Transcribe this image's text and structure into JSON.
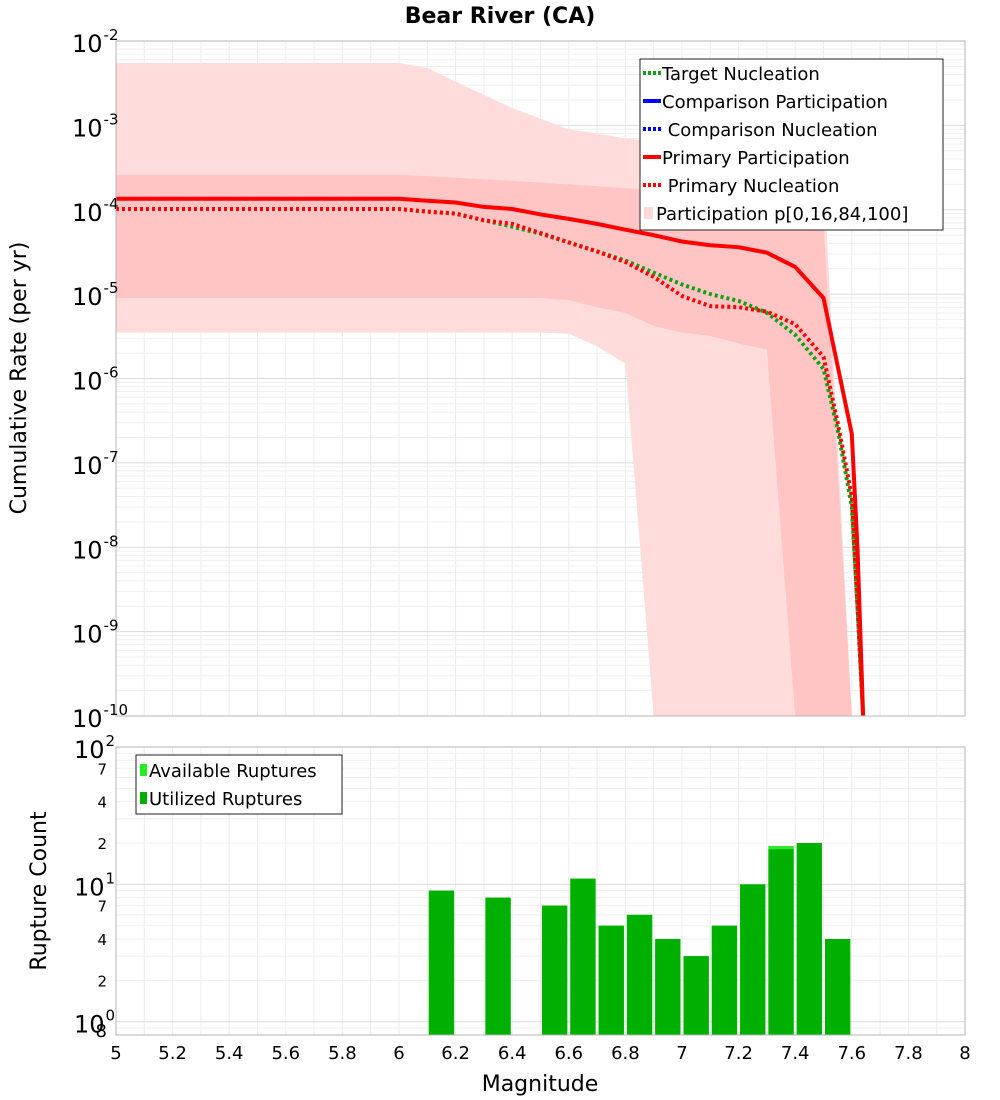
{
  "chart_data": [
    {
      "type": "line",
      "title": "Bear River (CA)",
      "xlabel": "",
      "ylabel": "Cumulative Rate (per yr)",
      "xlim": [
        5,
        8
      ],
      "ylim": [
        1e-10,
        0.01
      ],
      "yscale": "log",
      "y_tick_exponents": [
        "-2",
        "-3",
        "-4",
        "-5",
        "-6",
        "-7",
        "-8",
        "-9",
        "-10"
      ],
      "grid": true,
      "legend_position": "top-right",
      "legend": [
        {
          "label": "Target Nucleation",
          "color": "#11a011",
          "style": "dotted"
        },
        {
          "label": "Comparison Participation",
          "color": "#0000ff",
          "style": "solid"
        },
        {
          "label": " Comparison Nucleation",
          "color": "#0000ff",
          "style": "dotted"
        },
        {
          "label": "Primary Participation",
          "color": "#ff0000",
          "style": "solid"
        },
        {
          "label": " Primary Nucleation",
          "color": "#ff0000",
          "style": "dotted"
        },
        {
          "label": "Participation p[0,16,84,100]",
          "color": "#ffd8d8",
          "style": "fill"
        }
      ],
      "bands": [
        {
          "name": "p0-p100",
          "color": "#ffdcdc",
          "x": [
            5.0,
            5.1,
            5.2,
            5.3,
            5.4,
            5.5,
            5.6,
            5.7,
            5.8,
            5.9,
            6.0,
            6.1,
            6.2,
            6.3,
            6.4,
            6.5,
            6.6,
            6.7,
            6.8,
            6.9,
            7.0,
            7.1,
            7.2,
            7.3,
            7.4,
            7.5,
            7.6,
            7.7
          ],
          "upper": [
            0.0055,
            0.0055,
            0.0055,
            0.0055,
            0.0055,
            0.0055,
            0.0055,
            0.0055,
            0.0055,
            0.0055,
            0.0055,
            0.0048,
            0.0033,
            0.0023,
            0.0016,
            0.0012,
            0.0009,
            0.0008,
            0.0007,
            0.00065,
            0.0006,
            0.00055,
            0.0005,
            0.0004,
            0.00035,
            0.0003,
            1e-10,
            1e-10
          ],
          "lower": [
            3.5e-06,
            3.5e-06,
            3.5e-06,
            3.5e-06,
            3.5e-06,
            3.5e-06,
            3.5e-06,
            3.5e-06,
            3.5e-06,
            3.5e-06,
            3.5e-06,
            3.5e-06,
            3.5e-06,
            3.5e-06,
            3.5e-06,
            3.5e-06,
            3.4e-06,
            2.4e-06,
            1.5e-06,
            1e-10,
            1e-10,
            1e-10,
            1e-10,
            1e-10,
            1e-10,
            1e-10,
            1e-10,
            1e-10
          ]
        },
        {
          "name": "p16-p84",
          "color": "#ffc4c4",
          "x": [
            5.0,
            5.1,
            5.2,
            5.3,
            5.4,
            5.5,
            5.6,
            5.7,
            5.8,
            5.9,
            6.0,
            6.1,
            6.2,
            6.3,
            6.4,
            6.5,
            6.6,
            6.7,
            6.8,
            6.9,
            7.0,
            7.1,
            7.2,
            7.3,
            7.4,
            7.5,
            7.6,
            7.7
          ],
          "upper": [
            0.00026,
            0.00026,
            0.00026,
            0.00026,
            0.00026,
            0.00026,
            0.00026,
            0.00026,
            0.00026,
            0.00026,
            0.00026,
            0.00025,
            0.00024,
            0.00023,
            0.00022,
            0.00021,
            0.0002,
            0.00019,
            0.00018,
            0.00017,
            0.00016,
            0.00015,
            0.00014,
            0.00012,
            0.0001,
            7e-05,
            1e-10,
            1e-10
          ],
          "lower": [
            9e-06,
            9e-06,
            9e-06,
            9e-06,
            9e-06,
            9e-06,
            9e-06,
            9e-06,
            9e-06,
            9e-06,
            9e-06,
            9e-06,
            9e-06,
            9e-06,
            9e-06,
            9e-06,
            8.5e-06,
            7e-06,
            6e-06,
            4.2e-06,
            3.5e-06,
            3.2e-06,
            2.6e-06,
            2.2e-06,
            1e-10,
            1e-10,
            1e-10,
            1e-10
          ]
        }
      ],
      "series": [
        {
          "name": "Primary Participation",
          "color": "#ff0000",
          "style": "solid",
          "x": [
            5.0,
            6.0,
            6.1,
            6.2,
            6.3,
            6.4,
            6.5,
            6.6,
            6.7,
            6.8,
            6.9,
            7.0,
            7.1,
            7.2,
            7.3,
            7.4,
            7.5,
            7.6,
            7.62,
            7.64
          ],
          "y": [
            0.000135,
            0.000135,
            0.000128,
            0.000122,
            0.000108,
            0.000102,
            8.8e-05,
            7.8e-05,
            6.8e-05,
            5.8e-05,
            5e-05,
            4.2e-05,
            3.8e-05,
            3.6e-05,
            3.1e-05,
            2.1e-05,
            9e-06,
            2.2e-07,
            1e-08,
            1e-10
          ]
        },
        {
          "name": "Target Nucleation",
          "color": "#11a011",
          "style": "dotted",
          "x": [
            5.0,
            6.0,
            6.1,
            6.2,
            6.3,
            6.4,
            6.5,
            6.6,
            6.7,
            6.8,
            6.9,
            7.0,
            7.1,
            7.2,
            7.3,
            7.4,
            7.5,
            7.55,
            7.6,
            7.62,
            7.64
          ],
          "y": [
            0.000102,
            0.000102,
            9.5e-05,
            9e-05,
            7.5e-05,
            6.3e-05,
            5.2e-05,
            4.1e-05,
            3.2e-05,
            2.5e-05,
            1.8e-05,
            1.3e-05,
            1e-05,
            8.3e-06,
            6e-06,
            3.3e-06,
            1.3e-06,
            2.5e-07,
            3e-08,
            2e-09,
            1e-10
          ]
        },
        {
          "name": "Primary Nucleation",
          "color": "#ff0000",
          "style": "dotted",
          "x": [
            5.0,
            6.0,
            6.1,
            6.2,
            6.3,
            6.4,
            6.5,
            6.6,
            6.7,
            6.8,
            6.9,
            7.0,
            7.1,
            7.2,
            7.3,
            7.4,
            7.5,
            7.55,
            7.6,
            7.62,
            7.64
          ],
          "y": [
            0.000102,
            0.000102,
            9.5e-05,
            9e-05,
            7.5e-05,
            6.8e-05,
            5.3e-05,
            4.1e-05,
            3.2e-05,
            2.4e-05,
            1.6e-05,
            9.5e-06,
            7.2e-06,
            7e-06,
            6.2e-06,
            4.4e-06,
            1.8e-06,
            3e-07,
            4e-08,
            2e-09,
            1e-10
          ]
        }
      ]
    },
    {
      "type": "bar",
      "title": "",
      "xlabel": "Magnitude",
      "ylabel": "Rupture Count",
      "xlim": [
        5,
        8
      ],
      "ylim": [
        0.8,
        100
      ],
      "yscale": "log",
      "x_ticks": [
        "5",
        "5.2",
        "5.4",
        "5.6",
        "5.8",
        "6",
        "6.2",
        "6.4",
        "6.6",
        "6.8",
        "7",
        "7.2",
        "7.4",
        "7.6",
        "7.8",
        "8"
      ],
      "grid": true,
      "legend_position": "top-left",
      "legend": [
        {
          "label": "Available Ruptures",
          "color": "#22ee22"
        },
        {
          "label": "Utilized Ruptures",
          "color": "#00b000"
        }
      ],
      "bin_width": 0.1,
      "series": [
        {
          "name": "Available Ruptures",
          "color": "#22ee22",
          "x": [
            6.15,
            6.35,
            6.55,
            6.65,
            6.75,
            6.85,
            6.95,
            7.05,
            7.15,
            7.25,
            7.35,
            7.45,
            7.55
          ],
          "values": [
            9,
            8,
            7,
            11,
            5,
            6,
            4,
            3,
            5,
            10,
            19,
            20,
            4
          ]
        },
        {
          "name": "Utilized Ruptures",
          "color": "#00b000",
          "x": [
            6.15,
            6.35,
            6.55,
            6.65,
            6.75,
            6.85,
            6.95,
            7.05,
            7.15,
            7.25,
            7.35,
            7.45,
            7.55
          ],
          "values": [
            9,
            8,
            7,
            11,
            5,
            6,
            4,
            3,
            5,
            10,
            18,
            20,
            4
          ]
        }
      ]
    }
  ],
  "bottom_y_tick_labels": {
    "major": [
      {
        "base": "10",
        "exp": "2",
        "value": 100
      },
      {
        "base": "10",
        "exp": "1",
        "value": 10
      },
      {
        "base": "10",
        "exp": "0",
        "value": 1
      }
    ],
    "minor": [
      {
        "label": "7",
        "value": 70
      },
      {
        "label": "4",
        "value": 40
      },
      {
        "label": "2",
        "value": 20
      },
      {
        "label": "7",
        "value": 7
      },
      {
        "label": "4",
        "value": 4
      },
      {
        "label": "2",
        "value": 2
      },
      {
        "label": "8",
        "value": 0.8
      }
    ]
  }
}
